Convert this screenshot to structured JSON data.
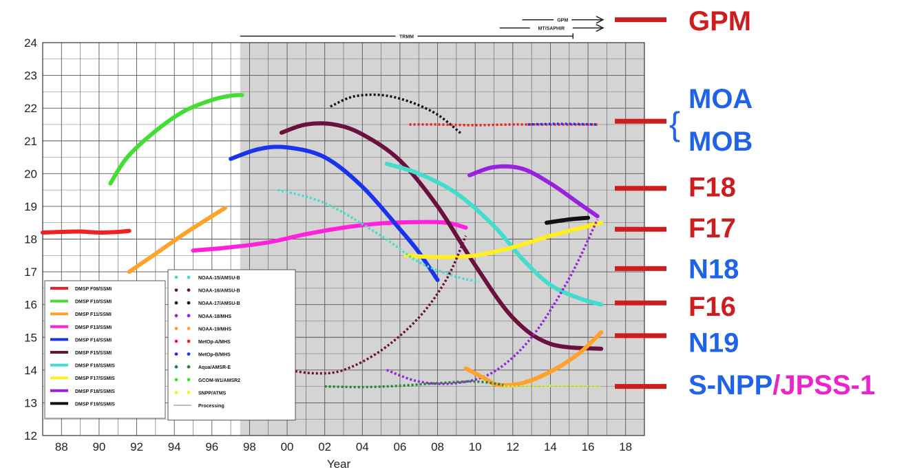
{
  "chart_data": {
    "type": "line",
    "title": "",
    "xlabel": "Year",
    "ylabel": "",
    "xlim": [
      1987,
      2019
    ],
    "ylim": [
      12,
      24
    ],
    "x_ticks": [
      "88",
      "90",
      "92",
      "94",
      "96",
      "98",
      "00",
      "02",
      "04",
      "06",
      "08",
      "10",
      "12",
      "14",
      "16",
      "18"
    ],
    "y_ticks": [
      "24",
      "23",
      "22",
      "21",
      "20",
      "19",
      "18",
      "17",
      "16",
      "15",
      "14",
      "13",
      "12"
    ],
    "grid": true,
    "processing_shaded_from": 1997.5,
    "legend_left": [
      {
        "name": "DMSP F08/SSMI",
        "color": "#ee2222"
      },
      {
        "name": "DMSP F10/SSMI",
        "color": "#44dd33"
      },
      {
        "name": "DMSP F11/SSMI",
        "color": "#ffa22a"
      },
      {
        "name": "DMSP F13/SSMI",
        "color": "#ff22dd"
      },
      {
        "name": "DMSP F14/SSMI",
        "color": "#1a33ee"
      },
      {
        "name": "DMSP F15/SSMI",
        "color": "#6a1140"
      },
      {
        "name": "DMSP F16/SSMIS",
        "color": "#44ddcc"
      },
      {
        "name": "DMSP F17/SSMIS",
        "color": "#ffee22"
      },
      {
        "name": "DMSP F18/SSMIS",
        "color": "#9922dd"
      },
      {
        "name": "DMSP F19/SSMIS",
        "color": "#111111"
      }
    ],
    "legend_right": [
      {
        "name": "NOAA-15/AMSU-B",
        "color": "#44ddcc"
      },
      {
        "name": "NOAA-16/AMSU-B",
        "color": "#6a1140"
      },
      {
        "name": "NOAA-17/AMSU-B",
        "color": "#111111"
      },
      {
        "name": "NOAA-18/MHS",
        "color": "#9922dd"
      },
      {
        "name": "NOAA-19/MHS",
        "color": "#ffa22a"
      },
      {
        "name": "MetOp-A/MHS",
        "color": "#ee2222"
      },
      {
        "name": "MetOp-B/MHS",
        "color": "#1a33ee"
      },
      {
        "name": "Aqua/AMSR-E",
        "color": "#228833"
      },
      {
        "name": "GCOM-W1/AMSR2",
        "color": "#44dd33"
      },
      {
        "name": "SNPP/ATMS",
        "color": "#ffee22"
      },
      {
        "name": "Processing",
        "color": "#aaaaaa"
      }
    ],
    "series": [
      {
        "name": "DMSP F08/SSMI",
        "color": "#ee2222",
        "style": "solid",
        "x": [
          1987,
          1988,
          1989,
          1990,
          1991,
          1991.6
        ],
        "y": [
          18.2,
          18.22,
          18.23,
          18.2,
          18.22,
          18.25
        ]
      },
      {
        "name": "DMSP F10/SSMI",
        "color": "#44dd33",
        "style": "solid",
        "x": [
          1990.6,
          1991.5,
          1993,
          1994.5,
          1996,
          1997,
          1997.6
        ],
        "y": [
          19.7,
          20.5,
          21.3,
          21.9,
          22.25,
          22.38,
          22.4
        ]
      },
      {
        "name": "DMSP F11/SSMI",
        "color": "#ffa22a",
        "style": "solid",
        "x": [
          1991.6,
          1993,
          1994.5,
          1996,
          1996.7
        ],
        "y": [
          17.0,
          17.55,
          18.15,
          18.7,
          18.95
        ]
      },
      {
        "name": "DMSP F13/SSMI",
        "color": "#ff22dd",
        "style": "solid",
        "x": [
          1995,
          1997,
          1999,
          2001,
          2003,
          2005,
          2007,
          2008.5,
          2009.5
        ],
        "y": [
          17.65,
          17.75,
          17.9,
          18.15,
          18.35,
          18.48,
          18.52,
          18.5,
          18.35
        ]
      },
      {
        "name": "DMSP F14/SSMI",
        "color": "#1a33ee",
        "style": "solid",
        "x": [
          1997,
          1998.5,
          2000,
          2002,
          2004,
          2006,
          2007,
          2008
        ],
        "y": [
          20.45,
          20.75,
          20.8,
          20.5,
          19.6,
          18.3,
          17.6,
          16.75
        ]
      },
      {
        "name": "DMSP F15/SSMI",
        "color": "#6a1140",
        "style": "solid",
        "x": [
          1999.7,
          2001,
          2002.5,
          2004,
          2006,
          2008,
          2010,
          2012,
          2014,
          2016.7
        ],
        "y": [
          21.25,
          21.5,
          21.5,
          21.2,
          20.4,
          19.0,
          17.2,
          15.6,
          14.8,
          14.65
        ]
      },
      {
        "name": "DMSP F16/SSMIS",
        "color": "#44ddcc",
        "style": "solid",
        "x": [
          2005.3,
          2007,
          2009,
          2011,
          2012.5,
          2014,
          2015.5,
          2016.7
        ],
        "y": [
          20.3,
          20.0,
          19.4,
          18.4,
          17.4,
          16.6,
          16.2,
          16.0
        ]
      },
      {
        "name": "DMSP F17/SSMIS",
        "color": "#ffee22",
        "style": "solid",
        "x": [
          2006.3,
          2008,
          2010,
          2012,
          2014,
          2016.7
        ],
        "y": [
          17.5,
          17.45,
          17.5,
          17.75,
          18.1,
          18.5
        ]
      },
      {
        "name": "DMSP F18/SSMIS",
        "color": "#9922dd",
        "style": "solid",
        "x": [
          2009.7,
          2011,
          2012.5,
          2014,
          2015.5,
          2016.5
        ],
        "y": [
          19.95,
          20.2,
          20.15,
          19.7,
          19.1,
          18.7
        ]
      },
      {
        "name": "DMSP F19/SSMIS",
        "color": "#111111",
        "style": "solid",
        "x": [
          2013.8,
          2015,
          2016
        ],
        "y": [
          18.5,
          18.6,
          18.65
        ]
      },
      {
        "name": "NOAA-15/AMSU-B",
        "color": "#44ddcc",
        "style": "dotted",
        "x": [
          1999.5,
          2002,
          2005,
          2007,
          2009,
          2010.2
        ],
        "y": [
          19.5,
          19.1,
          18.1,
          17.3,
          16.85,
          16.7
        ]
      },
      {
        "name": "NOAA-16/AMSU-B",
        "color": "#6a1140",
        "style": "dotted",
        "x": [
          2000,
          2001.5,
          2003,
          2005,
          2007,
          2008.5,
          2009.5
        ],
        "y": [
          14.0,
          13.9,
          14.0,
          14.6,
          15.6,
          16.8,
          18.1
        ]
      },
      {
        "name": "NOAA-17/AMSU-B",
        "color": "#111111",
        "style": "dotted",
        "x": [
          2002.3,
          2003.5,
          2005,
          2006.5,
          2008,
          2009.3
        ],
        "y": [
          22.05,
          22.35,
          22.4,
          22.2,
          21.8,
          21.2
        ]
      },
      {
        "name": "NOAA-18/MHS",
        "color": "#9922dd",
        "style": "dotted",
        "x": [
          2005.3,
          2007,
          2009,
          2011,
          2013,
          2015,
          2016.5
        ],
        "y": [
          14.0,
          13.65,
          13.6,
          13.95,
          15.0,
          16.8,
          18.6
        ]
      },
      {
        "name": "NOAA-19/MHS",
        "color": "#ffa22a",
        "style": "solid",
        "x": [
          2009.5,
          2010.5,
          2011.2,
          2012.5,
          2014,
          2015.5,
          2016.7
        ],
        "y": [
          14.05,
          13.75,
          13.55,
          13.6,
          13.95,
          14.5,
          15.15
        ]
      },
      {
        "name": "MetOp-A/MHS",
        "color": "#ee2222",
        "style": "dotted",
        "x": [
          2006.5,
          2008,
          2010,
          2012,
          2014,
          2016.5
        ],
        "y": [
          21.5,
          21.5,
          21.48,
          21.5,
          21.5,
          21.5
        ]
      },
      {
        "name": "MetOp-B/MHS",
        "color": "#1a33ee",
        "style": "dotted",
        "x": [
          2012.8,
          2014.5,
          2016.5
        ],
        "y": [
          21.5,
          21.52,
          21.5
        ]
      },
      {
        "name": "Aqua/AMSR-E",
        "color": "#228833",
        "style": "dotted",
        "x": [
          2002,
          2004,
          2006,
          2008,
          2010,
          2011.5
        ],
        "y": [
          13.5,
          13.48,
          13.52,
          13.6,
          13.65,
          13.55
        ]
      },
      {
        "name": "SNPP/ATMS",
        "color": "#ccee44",
        "style": "dotted",
        "x": [
          2011.5,
          2013,
          2014.5,
          2016.7
        ],
        "y": [
          13.5,
          13.5,
          13.52,
          13.5
        ]
      }
    ],
    "top_annotations": [
      {
        "text": "GPM",
        "from": 2012.5,
        "to": 2016.8,
        "y": 24.7,
        "arrow": true
      },
      {
        "text": "MT/SAPHIR",
        "from": 2011.3,
        "to": 2016.8,
        "y": 24.45,
        "arrow": true
      },
      {
        "text": "TRMM",
        "from": 1997.5,
        "to": 2015.2,
        "y": 24.2,
        "arrow": false
      }
    ],
    "right_labels": [
      {
        "parts": [
          {
            "text": "GPM",
            "color": "#cc1e1e"
          }
        ],
        "y": 24.8
      },
      {
        "parts": [
          {
            "text": "MOA",
            "color": "#1e63e8"
          }
        ],
        "y": 22.3
      },
      {
        "parts": [
          {
            "text": "MOB",
            "color": "#1e63e8"
          }
        ],
        "y": 21.0
      },
      {
        "parts": [
          {
            "text": "F18",
            "color": "#cc1e1e"
          }
        ],
        "y": 19.6
      },
      {
        "parts": [
          {
            "text": "F17",
            "color": "#cc1e1e"
          }
        ],
        "y": 18.35
      },
      {
        "parts": [
          {
            "text": "N18",
            "color": "#1e63e8"
          }
        ],
        "y": 17.1
      },
      {
        "parts": [
          {
            "text": "F16",
            "color": "#cc1e1e"
          }
        ],
        "y": 15.95
      },
      {
        "parts": [
          {
            "text": "N19",
            "color": "#1e63e8"
          }
        ],
        "y": 14.85
      },
      {
        "parts": [
          {
            "text": "S-NPP",
            "color": "#1e63e8"
          },
          {
            "text": "/JPSS-1",
            "color": "#ee22cc"
          }
        ],
        "y": 13.55
      }
    ],
    "right_markers": [
      {
        "y": 24.7
      },
      {
        "y": 21.6
      },
      {
        "y": 19.55
      },
      {
        "y": 18.3
      },
      {
        "y": 17.1
      },
      {
        "y": 16.05
      },
      {
        "y": 15.05
      },
      {
        "y": 13.5
      }
    ]
  }
}
